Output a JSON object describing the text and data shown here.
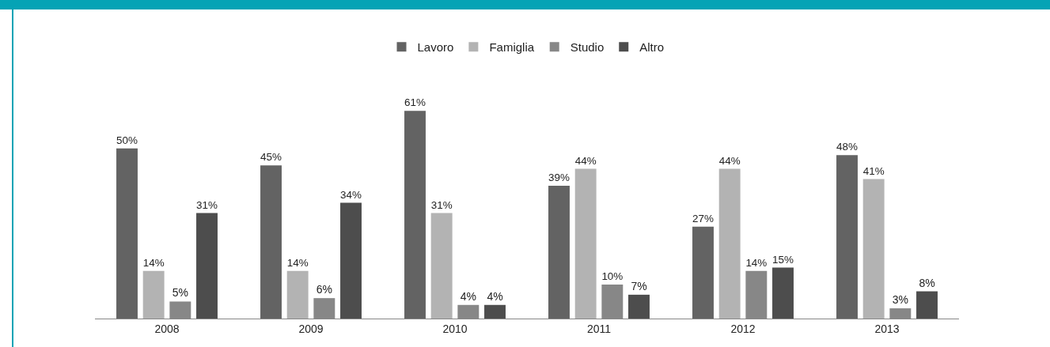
{
  "chart_data": {
    "type": "bar",
    "categories": [
      "2008",
      "2009",
      "2010",
      "2011",
      "2012",
      "2013"
    ],
    "series": [
      {
        "name": "Lavoro",
        "color": "#636363",
        "values": [
          50,
          45,
          61,
          39,
          27,
          48
        ],
        "value_labels": [
          "50%",
          "45%",
          "61%",
          "39%",
          "27%",
          "48%"
        ]
      },
      {
        "name": "Famiglia",
        "color": "#b3b3b3",
        "values": [
          14,
          14,
          31,
          44,
          44,
          41
        ],
        "value_labels": [
          "14%",
          "14%",
          "31%",
          "44%",
          "44%",
          "41%"
        ]
      },
      {
        "name": "Studio",
        "color": "#878787",
        "values": [
          5,
          6,
          4,
          10,
          14,
          3
        ],
        "value_labels": [
          "5%",
          "6%",
          "4%",
          "10%",
          "14%",
          "3%"
        ]
      },
      {
        "name": "Altro",
        "color": "#4d4d4d",
        "values": [
          31,
          34,
          4,
          7,
          15,
          8
        ],
        "value_labels": [
          "31%",
          "34%",
          "4%",
          "7%",
          "15%",
          "8%"
        ]
      }
    ],
    "grid": false,
    "legend": "top"
  }
}
